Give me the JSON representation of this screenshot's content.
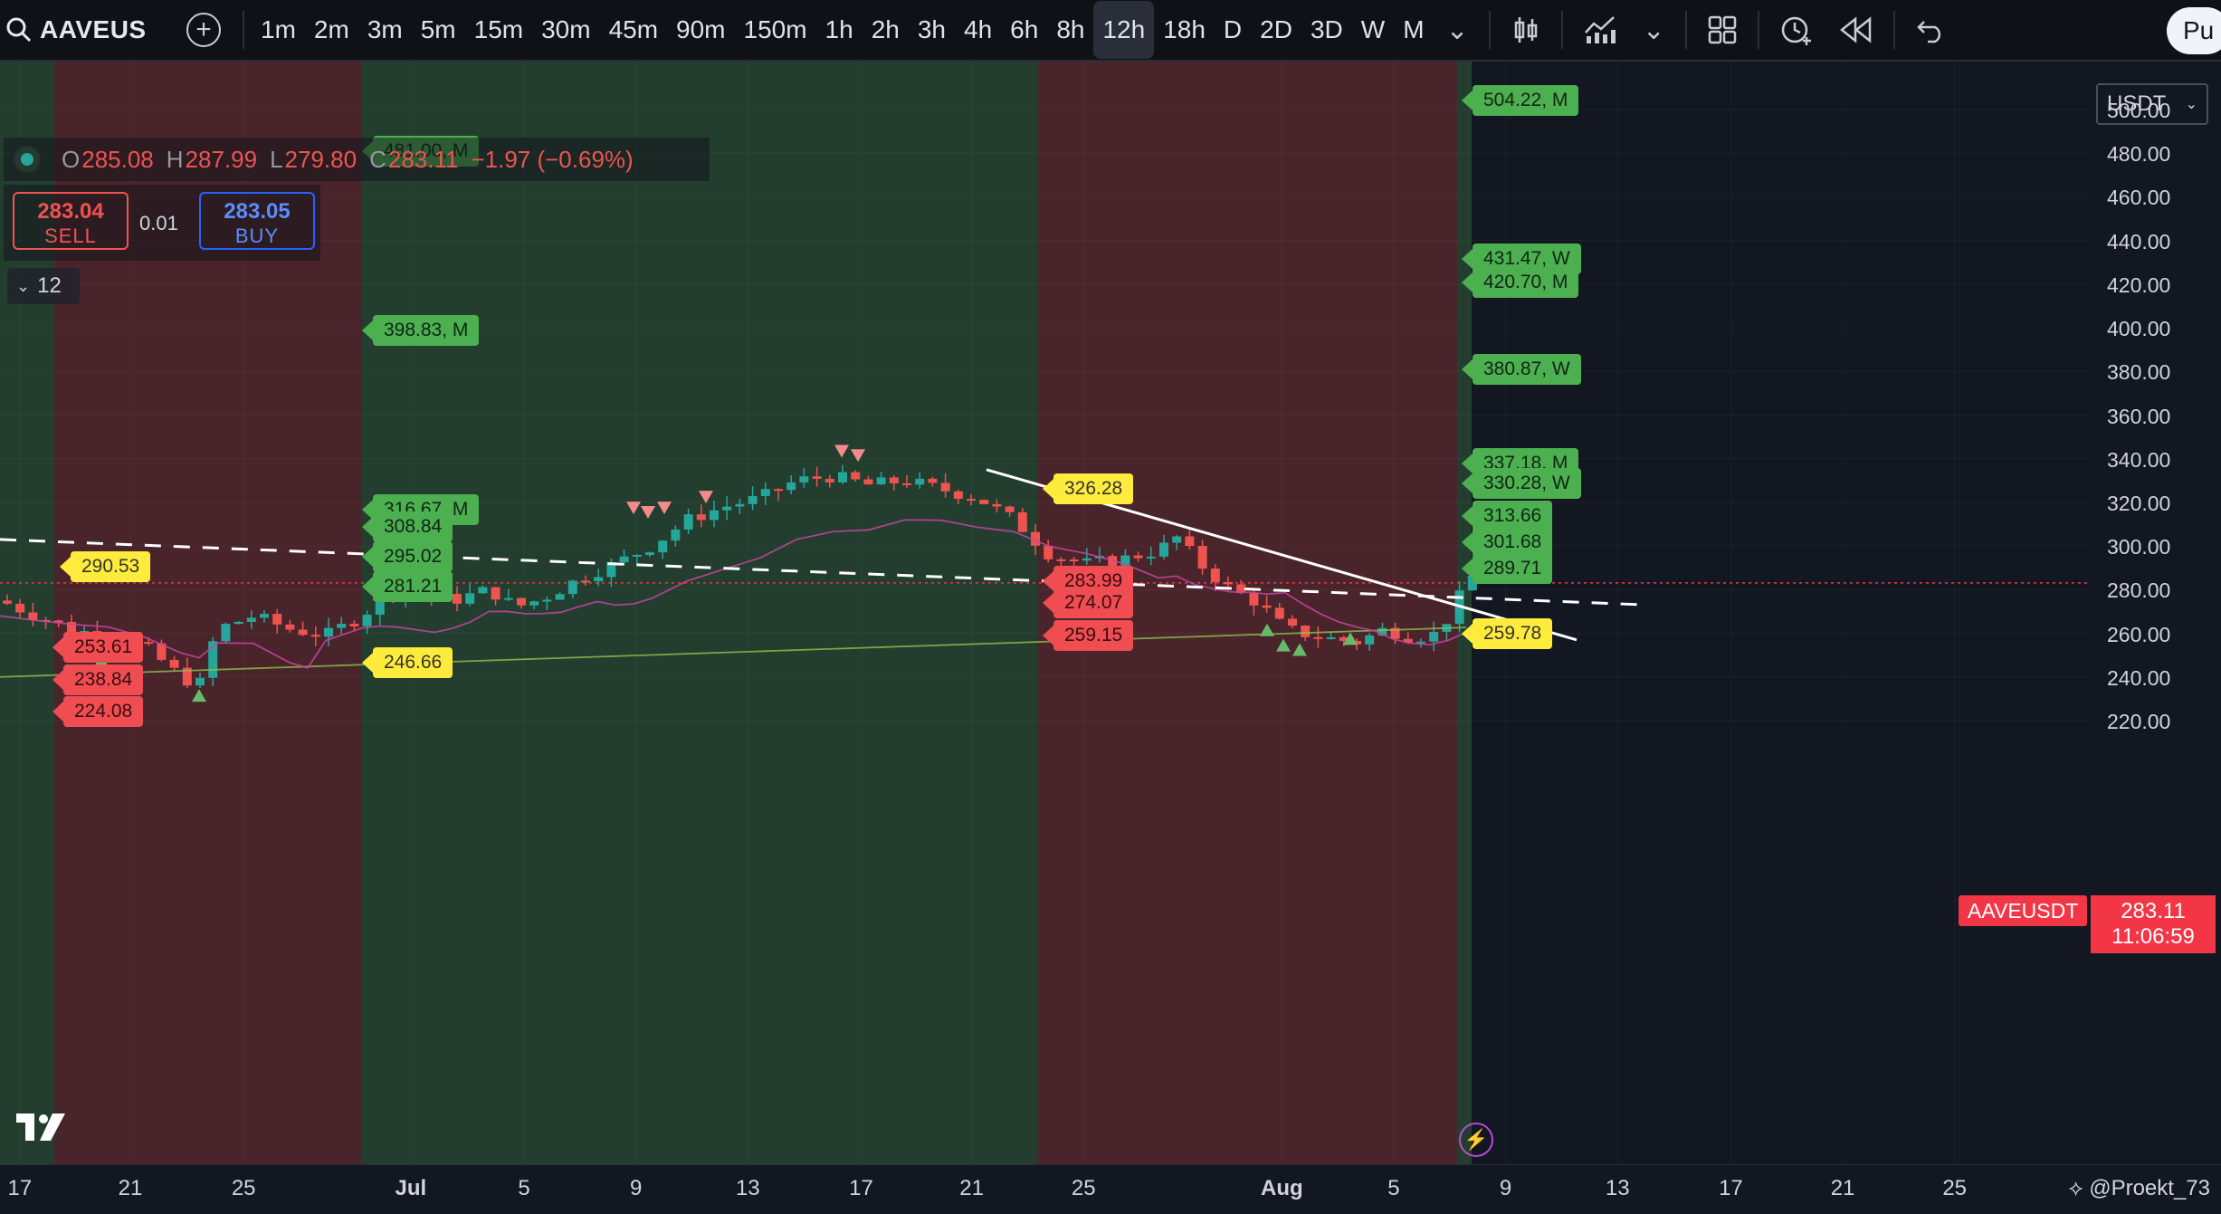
{
  "toolbar": {
    "symbol": "AAVEUS",
    "timeframes": [
      "1m",
      "2m",
      "3m",
      "5m",
      "15m",
      "30m",
      "45m",
      "90m",
      "150m",
      "1h",
      "2h",
      "3h",
      "4h",
      "6h",
      "8h",
      "12h",
      "18h",
      "D",
      "2D",
      "3D",
      "W",
      "M"
    ],
    "active_timeframe": "12h",
    "publish_label": "Pu"
  },
  "legend": {
    "open_key": "O",
    "open": "285.08",
    "high_key": "H",
    "high": "287.99",
    "low_key": "L",
    "low": "279.80",
    "close_key": "C",
    "close": "283.11",
    "change": "−1.97 (−0.69%)"
  },
  "trade": {
    "sell_price": "283.04",
    "sell_label": "SELL",
    "spread": "0.01",
    "buy_price": "283.05",
    "buy_label": "BUY"
  },
  "indicators_count": "12",
  "price_axis": {
    "currency": "USDT",
    "ticks": [
      "500.00",
      "480.00",
      "460.00",
      "440.00",
      "420.00",
      "400.00",
      "380.00",
      "360.00",
      "340.00",
      "320.00",
      "300.00",
      "280.00",
      "260.00",
      "240.00",
      "220.00"
    ],
    "current_price": "283.11",
    "countdown": "11:06:59",
    "symbol_tag": "AAVEUSDT"
  },
  "time_axis": {
    "ticks": [
      "17",
      "21",
      "25",
      "Jul",
      "5",
      "9",
      "13",
      "17",
      "21",
      "25",
      "Aug",
      "5",
      "9",
      "13",
      "17",
      "21",
      "25"
    ],
    "bold_ticks": [
      "Jul",
      "Aug"
    ],
    "watermark": "@Proekt_73"
  },
  "chart_labels": [
    {
      "text": "504.22, M",
      "color": "green",
      "price": 504.22
    },
    {
      "text": "481.00, M",
      "color": "green",
      "price": 481.0
    },
    {
      "text": "431.47, W",
      "color": "green",
      "price": 431.47
    },
    {
      "text": "420.70, M",
      "color": "green",
      "price": 420.7
    },
    {
      "text": "398.83, M",
      "color": "green",
      "price": 398.83
    },
    {
      "text": "380.87, W",
      "color": "green",
      "price": 380.87
    },
    {
      "text": "337.18, M",
      "color": "green",
      "price": 337.18
    },
    {
      "text": "330.28, W",
      "color": "green",
      "price": 330.28
    },
    {
      "text": "326.28",
      "color": "yellow",
      "price": 326.28
    },
    {
      "text": "316.67, M",
      "color": "green",
      "price": 316.67
    },
    {
      "text": "313.66",
      "color": "green",
      "price": 313.66
    },
    {
      "text": "308.84",
      "color": "green",
      "price": 308.84
    },
    {
      "text": "301.68",
      "color": "green",
      "price": 301.68
    },
    {
      "text": "295.02",
      "color": "green",
      "price": 295.02
    },
    {
      "text": "290.53",
      "color": "yellow",
      "price": 290.53
    },
    {
      "text": "289.71",
      "color": "green",
      "price": 289.71
    },
    {
      "text": "283.99",
      "color": "red",
      "price": 283.99
    },
    {
      "text": "281.21",
      "color": "green",
      "price": 281.21
    },
    {
      "text": "274.07",
      "color": "red",
      "price": 274.07
    },
    {
      "text": "259.78",
      "color": "yellow",
      "price": 259.78
    },
    {
      "text": "259.15",
      "color": "red",
      "price": 259.15
    },
    {
      "text": "253.61",
      "color": "red",
      "price": 253.61
    },
    {
      "text": "246.66",
      "color": "yellow",
      "price": 246.66
    },
    {
      "text": "238.84",
      "color": "red",
      "price": 238.84
    },
    {
      "text": "224.08",
      "color": "red",
      "price": 224.08
    }
  ],
  "colors": {
    "up": "#26a69a",
    "down": "#ef5350",
    "band_green": "#233d2f",
    "band_red": "#4a242b",
    "accent_red": "#f23645"
  }
}
